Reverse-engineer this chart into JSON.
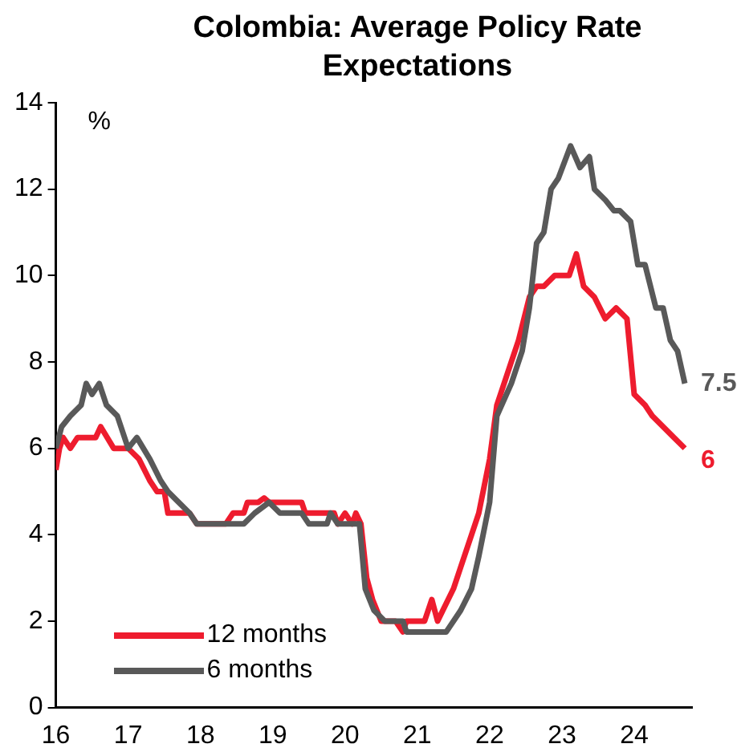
{
  "chart_data": {
    "type": "line",
    "title": "Colombia: Average Policy Rate Expectations",
    "ylabel": "%",
    "xlim": [
      16,
      24.8
    ],
    "xticks": [
      {
        "value": 16,
        "label": "16"
      },
      {
        "value": 17,
        "label": "17"
      },
      {
        "value": 18,
        "label": "18"
      },
      {
        "value": 19,
        "label": "19"
      },
      {
        "value": 20,
        "label": "20"
      },
      {
        "value": 21,
        "label": "21"
      },
      {
        "value": 22,
        "label": "22"
      },
      {
        "value": 23,
        "label": "23"
      },
      {
        "value": 24,
        "label": "24"
      }
    ],
    "ylim": [
      0,
      14
    ],
    "yticks": [
      0,
      2,
      4,
      6,
      8,
      10,
      12,
      14
    ],
    "grid": false,
    "legend": "bottom left",
    "marker": "none",
    "line_style": "solid",
    "series": [
      {
        "name": "12 months",
        "color": "#ee1c2e",
        "x": [
          16.0,
          16.05,
          16.1,
          16.2,
          16.3,
          16.55,
          16.62,
          16.8,
          17.0,
          17.15,
          17.3,
          17.4,
          17.5,
          17.55,
          17.85,
          17.95,
          18.35,
          18.45,
          18.6,
          18.65,
          18.8,
          18.88,
          18.95,
          19.4,
          19.45,
          19.85,
          19.9,
          20.0,
          20.1,
          20.15,
          20.22,
          20.3,
          20.38,
          20.5,
          20.7,
          20.8,
          20.85,
          21.1,
          21.2,
          21.28,
          21.5,
          21.6,
          21.75,
          21.85,
          22.0,
          22.1,
          22.3,
          22.4,
          22.55,
          22.65,
          22.75,
          22.9,
          23.1,
          23.2,
          23.3,
          23.45,
          23.6,
          23.75,
          23.9,
          24.0,
          24.15,
          24.25,
          24.4,
          24.55,
          24.7
        ],
        "values": [
          5.5,
          6.0,
          6.25,
          6.0,
          6.25,
          6.25,
          6.5,
          6.0,
          6.0,
          5.75,
          5.25,
          5.0,
          5.0,
          4.5,
          4.5,
          4.25,
          4.25,
          4.5,
          4.5,
          4.75,
          4.75,
          4.85,
          4.75,
          4.75,
          4.5,
          4.5,
          4.25,
          4.5,
          4.25,
          4.5,
          4.25,
          3.0,
          2.5,
          2.0,
          2.0,
          1.75,
          2.0,
          2.0,
          2.5,
          2.0,
          2.75,
          3.25,
          4.0,
          4.5,
          5.75,
          7.0,
          8.0,
          8.5,
          9.5,
          9.75,
          9.75,
          10.0,
          10.0,
          10.5,
          9.75,
          9.5,
          9.0,
          9.25,
          9.0,
          7.25,
          7.0,
          6.75,
          6.5,
          6.25,
          6.0
        ]
      },
      {
        "name": "6 months",
        "color": "#595959",
        "x": [
          16.0,
          16.08,
          16.2,
          16.35,
          16.42,
          16.5,
          16.6,
          16.7,
          16.85,
          17.0,
          17.12,
          17.3,
          17.45,
          17.55,
          17.7,
          17.85,
          17.95,
          18.6,
          18.75,
          18.95,
          19.1,
          19.4,
          19.5,
          19.75,
          19.8,
          19.9,
          20.2,
          20.28,
          20.4,
          20.55,
          20.8,
          20.85,
          21.4,
          21.6,
          21.75,
          21.85,
          22.0,
          22.1,
          22.3,
          22.45,
          22.55,
          22.65,
          22.75,
          22.85,
          22.95,
          23.12,
          23.25,
          23.38,
          23.45,
          23.6,
          23.72,
          23.8,
          23.95,
          24.05,
          24.15,
          24.3,
          24.4,
          24.5,
          24.6,
          24.7
        ],
        "values": [
          6.0,
          6.5,
          6.75,
          7.0,
          7.5,
          7.25,
          7.5,
          7.0,
          6.75,
          6.0,
          6.25,
          5.75,
          5.25,
          5.0,
          4.75,
          4.5,
          4.25,
          4.25,
          4.5,
          4.75,
          4.5,
          4.5,
          4.25,
          4.25,
          4.5,
          4.25,
          4.25,
          2.75,
          2.25,
          2.0,
          2.0,
          1.75,
          1.75,
          2.25,
          2.75,
          3.5,
          4.75,
          6.75,
          7.5,
          8.25,
          9.25,
          10.75,
          11.0,
          12.0,
          12.25,
          13.0,
          12.5,
          12.75,
          12.0,
          11.75,
          11.5,
          11.5,
          11.25,
          10.25,
          10.25,
          9.25,
          9.25,
          8.5,
          8.25,
          7.5
        ]
      }
    ],
    "annotations": [
      {
        "text": "6",
        "x": 24.7,
        "y": 6.0
      },
      {
        "text": "7.5",
        "x": 24.7,
        "y": 7.5
      }
    ]
  }
}
